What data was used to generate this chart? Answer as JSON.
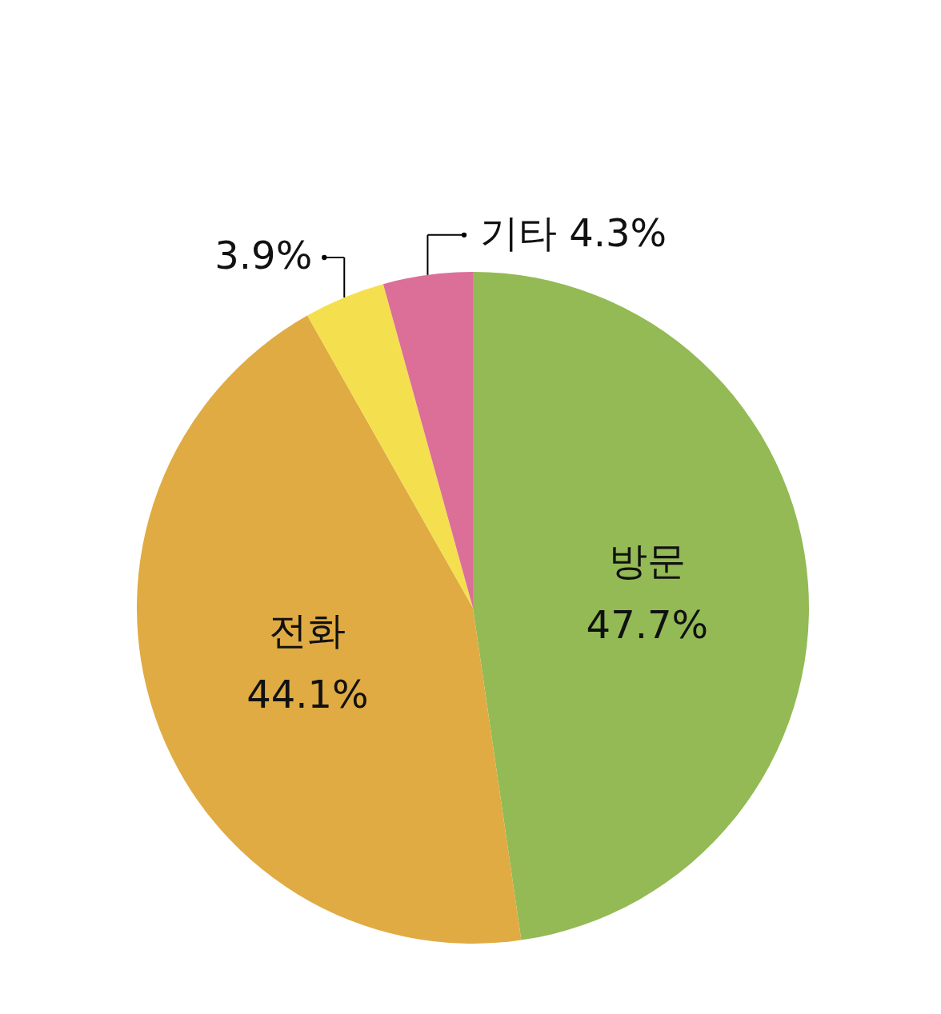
{
  "chart_data": {
    "type": "pie",
    "categories": [
      "방문",
      "전화",
      null,
      "기타"
    ],
    "values": [
      47.7,
      44.1,
      3.9,
      4.3
    ],
    "colors": [
      "#93ba55",
      "#e0ab43",
      "#f4e04f",
      "#db6f98"
    ],
    "value_labels": [
      "47.7%",
      "44.1%",
      "3.9%",
      "4.3%"
    ]
  }
}
